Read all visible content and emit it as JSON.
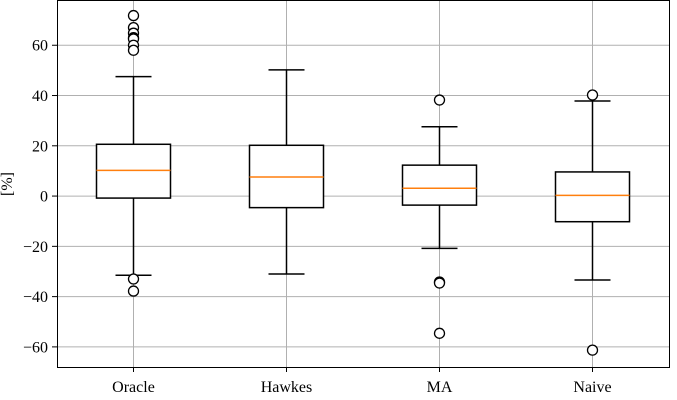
{
  "chart_data": {
    "type": "boxplot",
    "title": "",
    "xlabel": "",
    "ylabel": "[%]",
    "ylim": [
      -68,
      78
    ],
    "yticks": [
      -60,
      -40,
      -20,
      0,
      20,
      40,
      60
    ],
    "ytick_labels": [
      "−60",
      "−40",
      "−20",
      "0",
      "20",
      "40",
      "60"
    ],
    "grid": true,
    "categories": [
      "Oracle",
      "Hawkes",
      "MA",
      "Naive"
    ],
    "boxes": [
      {
        "name": "Oracle",
        "whisker_low": -31.5,
        "q1": -0.8,
        "median": 10.2,
        "q3": 20.6,
        "whisker_high": 47.5,
        "outliers": [
          71.8,
          67.0,
          64.8,
          63.0,
          62.5,
          60.0,
          58.0,
          -33.0,
          -37.8
        ]
      },
      {
        "name": "Hawkes",
        "whisker_low": -31.0,
        "q1": -4.6,
        "median": 7.6,
        "q3": 20.2,
        "whisker_high": 50.2,
        "outliers": []
      },
      {
        "name": "MA",
        "whisker_low": -20.8,
        "q1": -3.6,
        "median": 3.1,
        "q3": 12.3,
        "whisker_high": 27.6,
        "outliers": [
          38.2,
          -34.2,
          -34.6,
          -54.6
        ]
      },
      {
        "name": "Naive",
        "whisker_low": -33.4,
        "q1": -10.2,
        "median": 0.3,
        "q3": 9.6,
        "whisker_high": 37.8,
        "outliers": [
          40.2,
          -61.3
        ]
      }
    ],
    "colors": {
      "box": "#000000",
      "median": "#ff7f0e",
      "grid": "#b0b0b0",
      "outlier_fill": "#ffffff"
    }
  }
}
